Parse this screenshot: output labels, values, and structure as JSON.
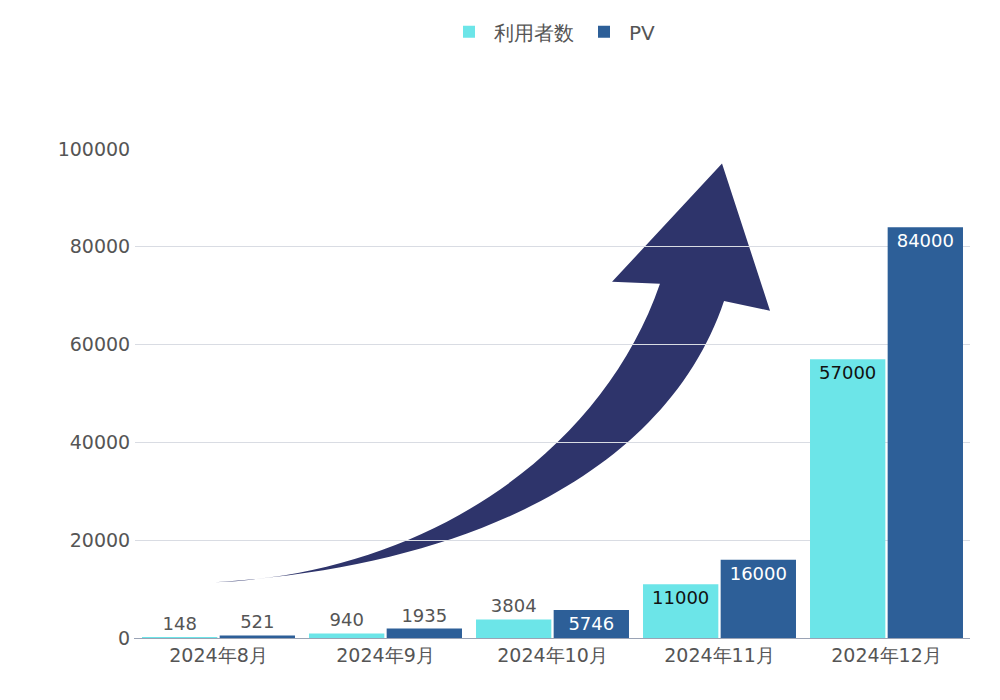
{
  "chart_data": {
    "type": "bar",
    "categories": [
      "2024年8月",
      "2024年9月",
      "2024年10月",
      "2024年11月",
      "2024年12月"
    ],
    "series": [
      {
        "name": "利用者数",
        "color": "#6ce5e8",
        "values": [
          148,
          940,
          3804,
          11000,
          57000
        ]
      },
      {
        "name": "PV",
        "color": "#2d5f98",
        "values": [
          521,
          1935,
          5746,
          16000,
          84000
        ]
      }
    ],
    "ylim": [
      0,
      100000
    ],
    "yticks": [
      0,
      20000,
      40000,
      60000,
      80000,
      100000
    ],
    "grid": true,
    "legend": "top",
    "data_labels": true
  }
}
